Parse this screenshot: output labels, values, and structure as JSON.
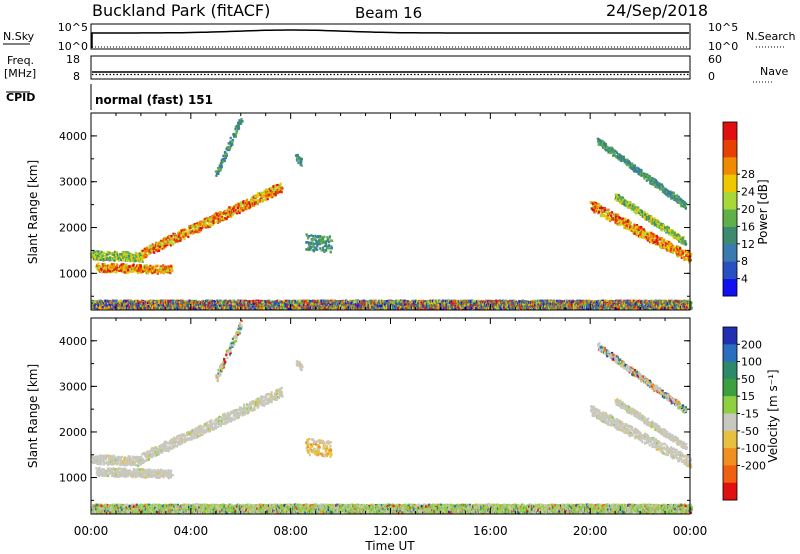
{
  "header": {
    "station": "Buckland Park (fitACF)",
    "beam": "Beam 16",
    "date": "24/Sep/2018"
  },
  "status_panels": {
    "nsky_label": "N.Sky",
    "nsky_top": "10^5",
    "nsky_bottom": "10^0",
    "nsearch_label": "N.Search",
    "nsearch_top": "10^5",
    "nsearch_bottom": "10^0",
    "freq_label": "Freq.",
    "freq_unit": "[MHz]",
    "freq_top": "18",
    "freq_bottom": "8",
    "nave_label": "Nave",
    "nave_top": "60",
    "nave_bottom": "0",
    "cpid_label": "CPID",
    "cpid_value": "normal (fast) 151"
  },
  "chart_data": [
    {
      "type": "heatmap",
      "name_key": "power",
      "ylabel": "Slant Range [km]",
      "ylim": [
        200,
        4500
      ],
      "yticks": [
        "1000",
        "2000",
        "3000",
        "4000"
      ],
      "xlim": [
        0,
        24
      ],
      "colorbar": {
        "label": "Power [dB]",
        "ticks": [
          "4",
          "8",
          "12",
          "16",
          "20",
          "24",
          "28"
        ],
        "colors": [
          "#1010f0",
          "#2850c0",
          "#3a7ab0",
          "#3c8a70",
          "#60b04a",
          "#a8d838",
          "#f0c800",
          "#f08a00",
          "#e84000",
          "#e01010"
        ]
      },
      "echoes": [
        {
          "t0": 0.2,
          "t1": 3.2,
          "r0": 1150,
          "r1": 1100,
          "width": 180,
          "level": "high"
        },
        {
          "t0": 2.0,
          "t1": 7.6,
          "r0": 1450,
          "r1": 2900,
          "width": 220,
          "level": "high"
        },
        {
          "t0": 0.0,
          "t1": 2.0,
          "r0": 1420,
          "r1": 1380,
          "width": 200,
          "level": "mid"
        },
        {
          "t0": 8.6,
          "t1": 9.6,
          "r0": 1700,
          "r1": 1650,
          "width": 350,
          "level": "low"
        },
        {
          "t0": 8.2,
          "t1": 8.4,
          "r0": 3550,
          "r1": 3450,
          "width": 150,
          "level": "low"
        },
        {
          "t0": 5.0,
          "t1": 6.0,
          "r0": 3200,
          "r1": 4400,
          "width": 150,
          "level": "low"
        },
        {
          "t0": 20.0,
          "t1": 24.0,
          "r0": 2500,
          "r1": 1350,
          "width": 220,
          "level": "high"
        },
        {
          "t0": 21.0,
          "t1": 23.8,
          "r0": 2700,
          "r1": 1700,
          "width": 140,
          "level": "mid"
        },
        {
          "t0": 20.3,
          "t1": 23.8,
          "r0": 3900,
          "r1": 2500,
          "width": 140,
          "level": "low"
        },
        {
          "t0": 0.0,
          "t1": 24.0,
          "r0": 340,
          "r1": 340,
          "width": 180,
          "level": "noise"
        }
      ]
    },
    {
      "type": "heatmap",
      "name_key": "velocity",
      "ylabel": "Slant Range [km]",
      "ylim": [
        200,
        4500
      ],
      "yticks": [
        "1000",
        "2000",
        "3000",
        "4000"
      ],
      "xlim": [
        0,
        24
      ],
      "xlabel": "Time UT",
      "xticks": [
        "00:00",
        "04:00",
        "08:00",
        "12:00",
        "16:00",
        "20:00",
        "00:00"
      ],
      "colorbar": {
        "label": "Velocity [m s⁻¹]",
        "ticks": [
          "200",
          "100",
          "50",
          "15",
          "-15",
          "-50",
          "-100",
          "-200"
        ],
        "colors": [
          "#2030b0",
          "#2a6ec0",
          "#2c8a6a",
          "#3ca040",
          "#8ed040",
          "#c8c8c0",
          "#e8c040",
          "#f09020",
          "#f06010",
          "#e01010"
        ]
      },
      "echoes": [
        {
          "t0": 0.2,
          "t1": 3.2,
          "r0": 1150,
          "r1": 1100,
          "width": 180,
          "level": "ground"
        },
        {
          "t0": 2.0,
          "t1": 7.6,
          "r0": 1450,
          "r1": 2900,
          "width": 220,
          "level": "ground"
        },
        {
          "t0": 0.0,
          "t1": 2.0,
          "r0": 1420,
          "r1": 1380,
          "width": 200,
          "level": "ground"
        },
        {
          "t0": 8.6,
          "t1": 9.6,
          "r0": 1700,
          "r1": 1650,
          "width": 350,
          "level": "neg"
        },
        {
          "t0": 8.2,
          "t1": 8.4,
          "r0": 3550,
          "r1": 3450,
          "width": 150,
          "level": "ground"
        },
        {
          "t0": 5.0,
          "t1": 6.0,
          "r0": 3200,
          "r1": 4400,
          "width": 150,
          "level": "mixed"
        },
        {
          "t0": 20.0,
          "t1": 24.0,
          "r0": 2500,
          "r1": 1350,
          "width": 220,
          "level": "ground"
        },
        {
          "t0": 21.0,
          "t1": 23.8,
          "r0": 2700,
          "r1": 1700,
          "width": 140,
          "level": "ground"
        },
        {
          "t0": 20.3,
          "t1": 23.8,
          "r0": 3900,
          "r1": 2500,
          "width": 140,
          "level": "mixed"
        },
        {
          "t0": 0.0,
          "t1": 24.0,
          "r0": 340,
          "r1": 340,
          "width": 180,
          "level": "noisev"
        }
      ]
    }
  ]
}
